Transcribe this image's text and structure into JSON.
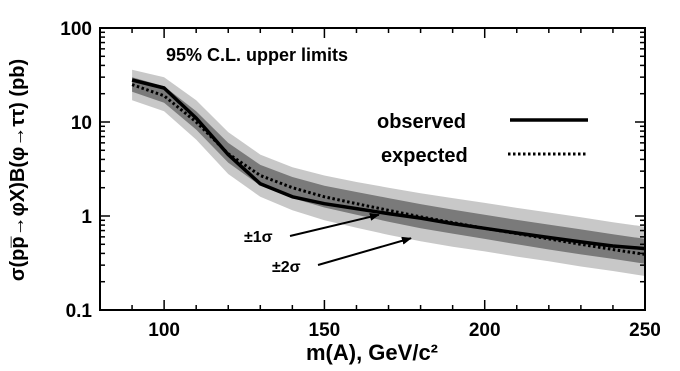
{
  "chart_data": {
    "type": "line",
    "title": "95% C.L. upper limits",
    "xlabel": "m(A),  GeV/c²",
    "ylabel": "σ(pp̅→φX)B(φ→ττ)  (pb)",
    "xlim": [
      80,
      250
    ],
    "ylim": [
      0.1,
      100
    ],
    "yscale": "log",
    "grid": false,
    "x_ticks": [
      100,
      150,
      200,
      250
    ],
    "y_ticks": [
      0.1,
      1,
      10,
      100
    ],
    "x_tick_labels": [
      "100",
      "150",
      "200",
      "250"
    ],
    "y_tick_labels": [
      "0.1",
      "1",
      "10",
      "100"
    ],
    "legend_position": "right",
    "series": [
      {
        "name": "observed",
        "style": "solid",
        "color": "#000000",
        "x": [
          90,
          100,
          110,
          120,
          130,
          140,
          150,
          160,
          170,
          180,
          190,
          200,
          210,
          220,
          230,
          240,
          250
        ],
        "y": [
          28,
          23,
          11,
          4.5,
          2.2,
          1.6,
          1.35,
          1.2,
          1.06,
          0.95,
          0.83,
          0.74,
          0.66,
          0.59,
          0.53,
          0.48,
          0.45
        ]
      },
      {
        "name": "expected",
        "style": "dotted",
        "color": "#000000",
        "x": [
          90,
          100,
          110,
          120,
          130,
          140,
          150,
          160,
          170,
          180,
          190,
          200,
          210,
          220,
          230,
          240,
          250
        ],
        "y": [
          25,
          19,
          10,
          4.6,
          2.7,
          2.0,
          1.6,
          1.35,
          1.15,
          0.98,
          0.85,
          0.74,
          0.65,
          0.57,
          0.5,
          0.44,
          0.39
        ]
      }
    ],
    "bands": [
      {
        "name": "±2σ",
        "color": "#c8c8c8",
        "x": [
          90,
          100,
          110,
          120,
          130,
          140,
          150,
          160,
          170,
          180,
          190,
          200,
          210,
          220,
          230,
          240,
          250
        ],
        "lower": [
          17,
          13,
          6.5,
          2.8,
          1.6,
          1.15,
          0.9,
          0.75,
          0.63,
          0.54,
          0.47,
          0.42,
          0.37,
          0.33,
          0.29,
          0.26,
          0.23
        ],
        "upper": [
          36,
          30,
          17,
          7.8,
          4.5,
          3.3,
          2.7,
          2.3,
          2.0,
          1.75,
          1.55,
          1.38,
          1.22,
          1.09,
          0.97,
          0.86,
          0.77
        ]
      },
      {
        "name": "±1σ",
        "color": "#7a7a7a",
        "x": [
          90,
          100,
          110,
          120,
          130,
          140,
          150,
          160,
          170,
          180,
          190,
          200,
          210,
          220,
          230,
          240,
          250
        ],
        "lower": [
          21,
          16,
          8.3,
          3.7,
          2.1,
          1.55,
          1.23,
          1.03,
          0.87,
          0.74,
          0.65,
          0.57,
          0.5,
          0.44,
          0.39,
          0.35,
          0.31
        ],
        "upper": [
          30,
          24,
          13,
          6.0,
          3.5,
          2.6,
          2.1,
          1.8,
          1.55,
          1.34,
          1.17,
          1.03,
          0.91,
          0.81,
          0.72,
          0.64,
          0.57
        ]
      }
    ],
    "legend": {
      "observed": "observed",
      "expected": "expected"
    },
    "annotations": [
      {
        "text": "±1σ",
        "points_to": [
          167,
          1.03
        ]
      },
      {
        "text": "±2σ",
        "points_to": [
          177,
          0.58
        ]
      }
    ]
  }
}
